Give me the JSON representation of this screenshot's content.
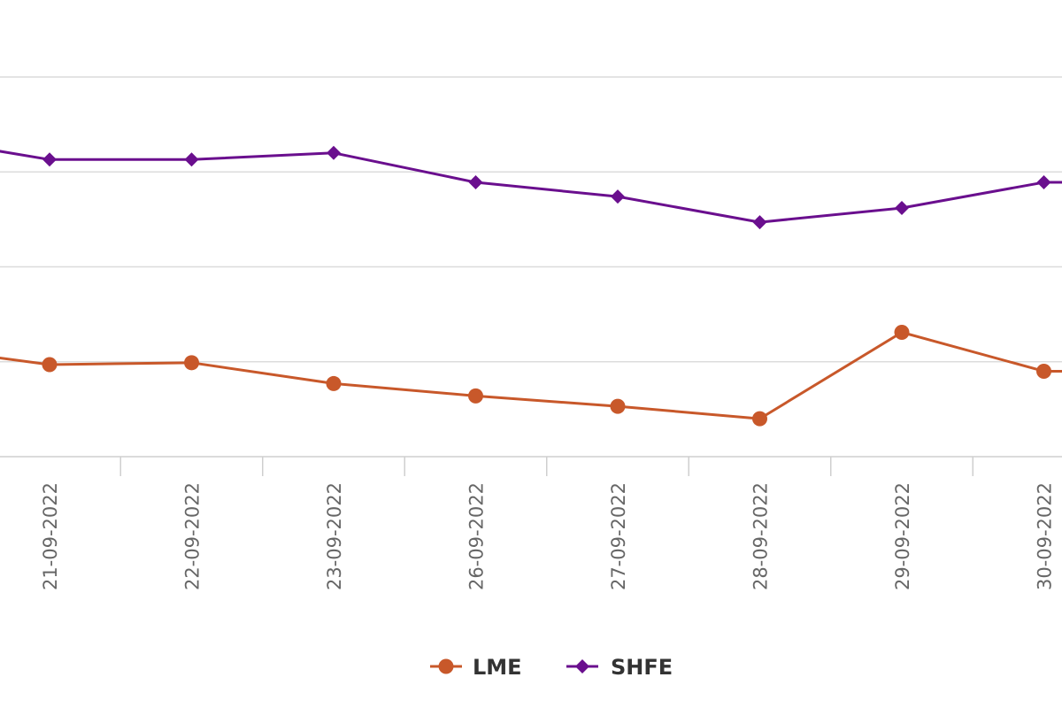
{
  "chart_data": {
    "type": "line",
    "x": [
      "21-09-2022",
      "22-09-2022",
      "23-09-2022",
      "26-09-2022",
      "27-09-2022",
      "28-09-2022",
      "29-09-2022",
      "30-09-2022"
    ],
    "y_range": [
      0,
      4
    ],
    "grid": true,
    "legend": "bottom-center",
    "series": [
      {
        "name": "LME",
        "color": "#c8582a",
        "marker": "circle",
        "lead_in": 1.05,
        "values": [
          0.97,
          0.99,
          0.77,
          0.64,
          0.53,
          0.4,
          1.31,
          0.9
        ],
        "trail_out": 0.9
      },
      {
        "name": "SHFE",
        "color": "#6a0f8e",
        "marker": "diamond",
        "lead_in": 3.23,
        "values": [
          3.13,
          3.13,
          3.2,
          2.89,
          2.74,
          2.47,
          2.62,
          2.89
        ],
        "trail_out": 2.89
      }
    ]
  }
}
